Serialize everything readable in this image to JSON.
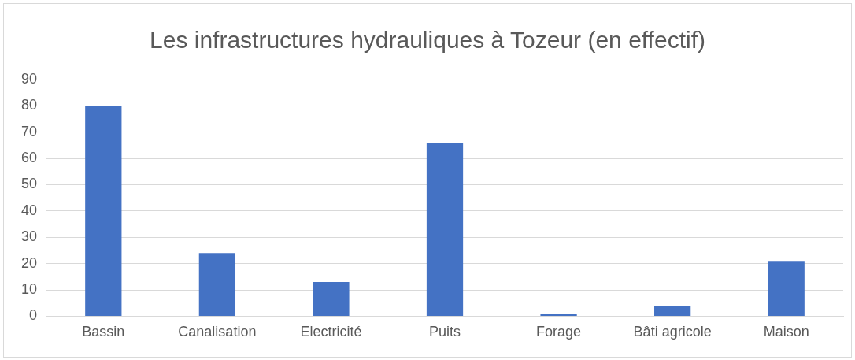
{
  "chart_data": {
    "type": "bar",
    "title": "Les infrastructures hydrauliques à Tozeur (en effectif)",
    "categories": [
      "Bassin",
      "Canalisation",
      "Electricité",
      "Puits",
      "Forage",
      "Bâti agricole",
      "Maison"
    ],
    "values": [
      80,
      24,
      13,
      66,
      1,
      4,
      21
    ],
    "color": "#4472c4",
    "ylim": [
      0,
      90
    ],
    "yticks": [
      0,
      10,
      20,
      30,
      40,
      50,
      60,
      70,
      80,
      90
    ],
    "grid": "y"
  }
}
